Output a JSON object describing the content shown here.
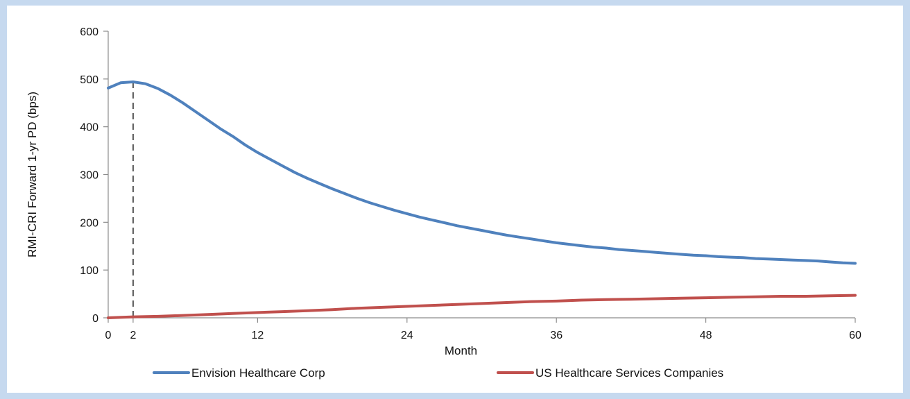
{
  "chart_data": {
    "type": "line",
    "title": "",
    "xlabel": "Month",
    "ylabel": "RMI-CRI  Forward 1-yr PD (bps)",
    "xlim": [
      0,
      60
    ],
    "ylim": [
      0,
      600
    ],
    "x_ticks": [
      0,
      2,
      12,
      24,
      36,
      48,
      60
    ],
    "y_ticks": [
      0,
      100,
      200,
      300,
      400,
      500,
      600
    ],
    "grid": false,
    "legend_position": "bottom",
    "reference_line": {
      "x": 2,
      "from": 0,
      "to": 494,
      "style": "dashed"
    },
    "series": [
      {
        "name": "Envision Healthcare Corp",
        "color": "#4f81bd",
        "x": [
          0,
          1,
          2,
          3,
          4,
          5,
          6,
          7,
          8,
          9,
          10,
          11,
          12,
          13,
          14,
          15,
          16,
          17,
          18,
          19,
          20,
          21,
          22,
          23,
          24,
          25,
          26,
          27,
          28,
          29,
          30,
          31,
          32,
          33,
          34,
          35,
          36,
          37,
          38,
          39,
          40,
          41,
          42,
          43,
          44,
          45,
          46,
          47,
          48,
          49,
          50,
          51,
          52,
          53,
          54,
          55,
          56,
          57,
          58,
          59,
          60
        ],
        "values": [
          481,
          492,
          494,
          490,
          480,
          466,
          450,
          432,
          414,
          396,
          380,
          362,
          346,
          332,
          318,
          304,
          292,
          281,
          270,
          260,
          250,
          241,
          233,
          225,
          218,
          211,
          205,
          199,
          193,
          188,
          183,
          178,
          173,
          169,
          165,
          161,
          157,
          154,
          151,
          148,
          146,
          143,
          141,
          139,
          137,
          135,
          133,
          131,
          130,
          128,
          127,
          126,
          124,
          123,
          122,
          121,
          120,
          119,
          117,
          115,
          114
        ]
      },
      {
        "name": "US Healthcare Services Companies",
        "color": "#c0504d",
        "x": [
          0,
          2,
          4,
          6,
          8,
          10,
          12,
          14,
          16,
          18,
          20,
          22,
          24,
          26,
          28,
          30,
          32,
          34,
          36,
          38,
          40,
          42,
          44,
          46,
          48,
          50,
          52,
          54,
          56,
          58,
          60
        ],
        "values": [
          0,
          2,
          3,
          5,
          7,
          9,
          11,
          13,
          15,
          17,
          20,
          22,
          24,
          26,
          28,
          30,
          32,
          34,
          35,
          37,
          38,
          39,
          40,
          41,
          42,
          43,
          44,
          45,
          45,
          46,
          47
        ]
      }
    ]
  }
}
